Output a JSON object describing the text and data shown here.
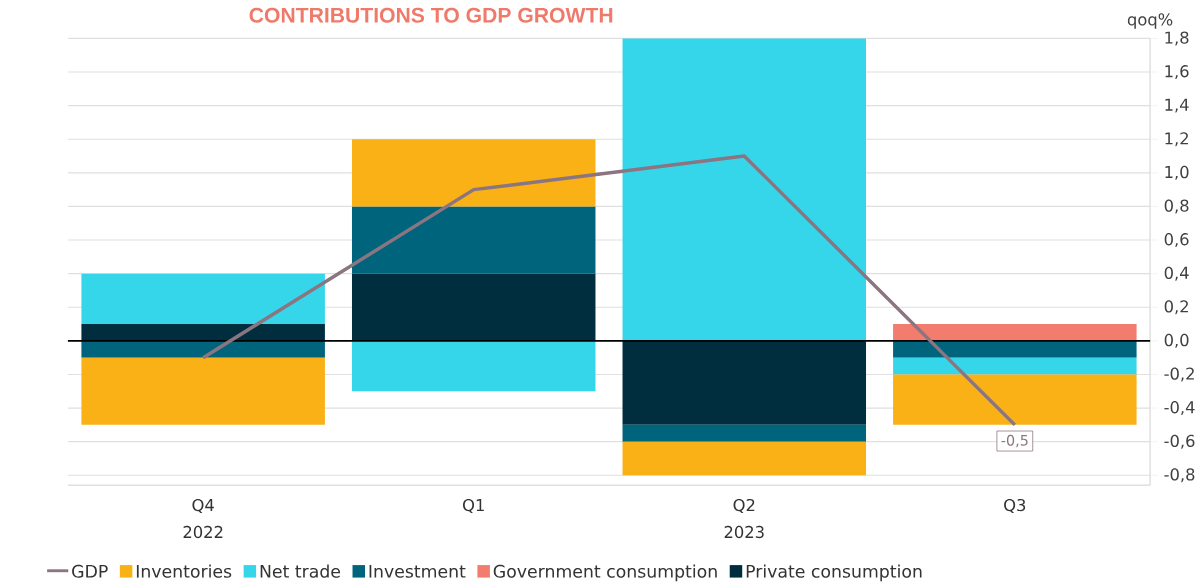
{
  "chart_data": {
    "type": "bar",
    "title": "CONTRIBUTIONS TO GDP GROWTH",
    "ylabel": "qoq%",
    "categories": [
      "Q4",
      "Q1",
      "Q2",
      "Q3"
    ],
    "annotations": [
      "2022",
      "2023"
    ],
    "stacked": true,
    "series": [
      {
        "name": "Private consumption",
        "color": "#012e3e",
        "values": [
          0.1,
          0.4,
          -0.5,
          0
        ]
      },
      {
        "name": "Government consumption",
        "color": "#f27c6e",
        "values": [
          0,
          0,
          0,
          0.1
        ]
      },
      {
        "name": "Investment",
        "color": "#00647c",
        "values": [
          -0.1,
          0.4,
          -0.1,
          -0.1
        ]
      },
      {
        "name": "Net trade",
        "color": "#36d6ea",
        "values": [
          0.3,
          -0.3,
          1.8,
          -0.1
        ]
      },
      {
        "name": "Inventories",
        "color": "#f9b116",
        "values": [
          -0.4,
          0.4,
          -0.2,
          -0.3
        ]
      },
      {
        "name": "GDP",
        "type": "line",
        "color": "#8a7580",
        "values": [
          -0.1,
          0.9,
          1.1,
          -0.5
        ],
        "value_labels": [
          null,
          null,
          null,
          "-0,5"
        ]
      }
    ],
    "ylim": [
      -0.86,
      1.8
    ],
    "yticks": [
      {
        "value": -0.8,
        "label": "-0,8"
      },
      {
        "value": -0.6,
        "label": "-0,6"
      },
      {
        "value": -0.4,
        "label": "-0,4"
      },
      {
        "value": -0.2,
        "label": "-0,2"
      },
      {
        "value": 0,
        "label": "0,0"
      },
      {
        "value": 0.2,
        "label": "0,2"
      },
      {
        "value": 0.4,
        "label": "0,4"
      },
      {
        "value": 0.6,
        "label": "0,6"
      },
      {
        "value": 0.8,
        "label": "0,8"
      },
      {
        "value": 1.0,
        "label": "1,0"
      },
      {
        "value": 1.2,
        "label": "1,2"
      },
      {
        "value": 1.4,
        "label": "1,4"
      },
      {
        "value": 1.6,
        "label": "1,6"
      },
      {
        "value": 1.8,
        "label": "1,8"
      }
    ],
    "ref_lines": [
      {
        "axis": "y",
        "value": 0,
        "color": "#000000"
      }
    ],
    "grid": "y",
    "legend": "bottom"
  }
}
